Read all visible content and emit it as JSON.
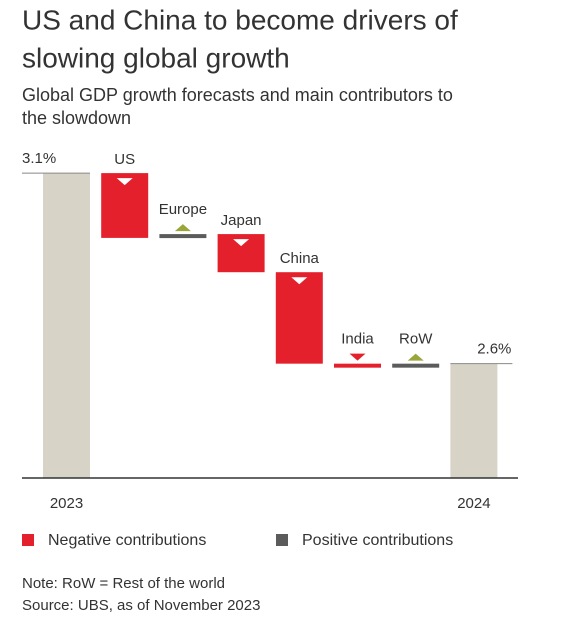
{
  "chart_data": {
    "type": "waterfall",
    "title": [
      "US and China to become drivers of",
      "slowing global growth"
    ],
    "subtitle": [
      "Global GDP growth forecasts and main contributors to",
      "the slowdown"
    ],
    "categories": [
      "2023",
      "US",
      "Europe",
      "Japan",
      "China",
      "India",
      "RoW",
      "2024"
    ],
    "values": [
      3.1,
      -0.17,
      0.01,
      -0.1,
      -0.24,
      -0.01,
      0.01,
      2.6
    ],
    "value_labels": [
      "3.1%",
      null,
      null,
      null,
      null,
      null,
      null,
      "2.6%"
    ],
    "totals": [
      0,
      7
    ],
    "ylim": [
      2.3,
      3.2
    ],
    "colors": {
      "total": "#d7d3c6",
      "negative": "#e3202b",
      "positive": "#5b5b5b",
      "positive_marker": "#9aa53a"
    },
    "legend": [
      {
        "name": "Negative contributions",
        "color": "#e3202b"
      },
      {
        "name": "Positive contributions",
        "color": "#5b5b5b"
      }
    ],
    "notes": [
      "Note: RoW = Rest of the world",
      "Source: UBS, as of November 2023"
    ]
  }
}
